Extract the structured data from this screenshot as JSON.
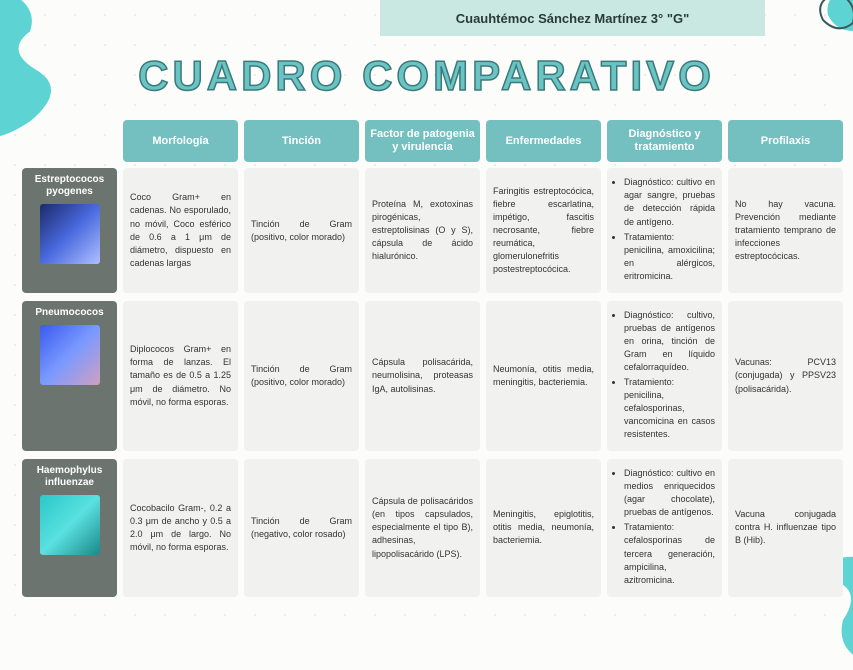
{
  "header": "Cuauhtémoc Sánchez Martínez 3° \"G\"",
  "title": "CUADRO COMPARATIVO",
  "columns": [
    "Morfología",
    "Tinción",
    "Factor de patogenia y virulencia",
    "Enfermedades",
    "Diagnóstico y tratamiento",
    "Profilaxis"
  ],
  "rows": [
    {
      "name": "Estreptococos pyogenes",
      "img_color": "linear-gradient(135deg,#1a2a6a,#4a6adf,#b0c0ff)",
      "cells": [
        "Coco Gram+ en cadenas. No esporulado, no móvil, Coco esférico de 0.6 a 1 μm de diámetro, dispuesto en cadenas largas",
        "Tinción de Gram (positivo, color morado)",
        "Proteína M, exotoxinas pirogénicas, estreptolisinas (O y S), cápsula de ácido hialurónico.",
        "Faringitis estreptocócica, fiebre escarlatina, impétigo, fascitis necrosante, fiebre reumática, glomerulonefritis postestreptocócica.",
        "",
        "No hay vacuna. Prevención mediante tratamiento temprano de infecciones estreptocócicas."
      ],
      "dx": {
        "diag": "Diagnóstico: cultivo en agar sangre, pruebas de detección rápida de antígeno.",
        "trat": "Tratamiento: penicilina, amoxicilina; en alérgicos, eritromicina."
      }
    },
    {
      "name": "Pneumococos",
      "img_color": "linear-gradient(135deg,#3a5aef,#7a9aff,#d0a0c0)",
      "cells": [
        "Diplococos Gram+ en forma de lanzas. El tamaño es de 0.5 a 1.25 μm de diámetro. No móvil, no forma esporas.",
        "Tinción de Gram (positivo, color morado)",
        "Cápsula polisacárida, neumolisina, proteasas IgA, autolisinas.",
        "Neumonía, otitis media, meningitis, bacteriemia.",
        "",
        "Vacunas: PCV13 (conjugada) y PPSV23 (polisacárida)."
      ],
      "dx": {
        "diag": "Diagnóstico: cultivo, pruebas de antígenos en orina, tinción de Gram en líquido cefalorraquídeo.",
        "trat": "Tratamiento: penicilina, cefalosporinas, vancomicina en casos resistentes."
      }
    },
    {
      "name": "Haemophylus influenzae",
      "img_color": "linear-gradient(135deg,#2ac8c8,#5ae0e0,#1a8888)",
      "cells": [
        "Cocobacilo Gram-, 0.2 a 0.3 μm de ancho y 0.5 a 2.0 μm de largo. No móvil, no forma esporas.",
        "Tinción de Gram (negativo, color rosado)",
        "Cápsula de polisacáridos (en tipos capsulados, especialmente el tipo B), adhesinas, lipopolisacárido (LPS).",
        "Meningitis, epiglotitis, otitis media, neumonía, bacteriemia.",
        "",
        "Vacuna conjugada contra H. influenzae tipo B (Hib)."
      ],
      "dx": {
        "diag": "Diagnóstico: cultivo en medios enriquecidos (agar chocolate), pruebas de antígenos.",
        "trat": "Tratamiento: cefalosporinas de tercera generación, ampicilina, azitromicina."
      }
    }
  ],
  "colors": {
    "teal": "#74c0c0",
    "teal_dark": "#3a7a7a",
    "dark_gray": "#6c7470",
    "cell_bg": "#f1f1ef",
    "header_bg": "#c9e8e2"
  }
}
